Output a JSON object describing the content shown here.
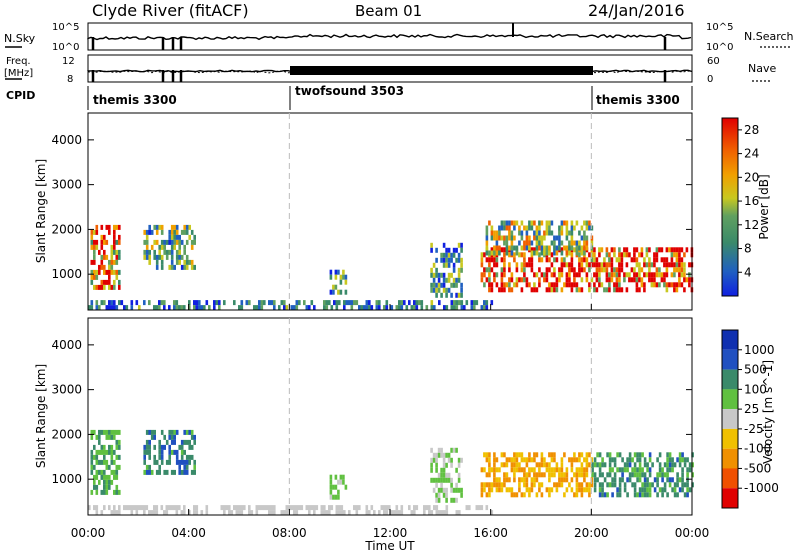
{
  "header": {
    "station": "Clyde River (fitACF)",
    "beam": "Beam 01",
    "date": "24/Jan/2016"
  },
  "summary_panels": {
    "nsky_label": "N.Sky",
    "nsky_ticks": [
      "10^5",
      "10^0"
    ],
    "nsearch_label": "N.Search",
    "nsearch_ticks": [
      "10^5",
      "10^0"
    ],
    "freq_label_1": "Freq.",
    "freq_label_2": "[MHz]",
    "freq_ticks": [
      "12",
      "8"
    ],
    "nave_label": "Nave",
    "nave_ticks": [
      "60",
      "0"
    ],
    "cpid_label": "CPID",
    "cpid_segments": [
      {
        "label": "themis 3300",
        "start_hour": 0,
        "end_hour": 8
      },
      {
        "label": "twofsound 3503",
        "start_hour": 8,
        "end_hour": 20
      },
      {
        "label": "themis 3300",
        "start_hour": 20,
        "end_hour": 24
      }
    ]
  },
  "x_axis": {
    "title": "Time UT",
    "ticks": [
      "00:00",
      "04:00",
      "08:00",
      "12:00",
      "16:00",
      "20:00",
      "00:00"
    ]
  },
  "chart_data": [
    {
      "type": "heatmap",
      "panel": "power",
      "ylabel": "Slant Range [km]",
      "yticks": [
        "1000",
        "2000",
        "3000",
        "4000"
      ],
      "ylim": [
        200,
        4600
      ],
      "xlim_hours": [
        0,
        24
      ],
      "colorbar_label": "Power [dB]",
      "colorbar_ticks": [
        "4",
        "8",
        "12",
        "16",
        "20",
        "24",
        "28"
      ],
      "colorbar_range": [
        0,
        30
      ],
      "colorscale": [
        "#1020e0",
        "#2060c0",
        "#3a8a6a",
        "#60a060",
        "#c8c820",
        "#f0a000",
        "#f06000",
        "#e00000"
      ],
      "echo_regions": [
        {
          "t_start": 0.1,
          "t_end": 1.2,
          "range_low": 700,
          "range_high": 2100,
          "level": 22
        },
        {
          "t_start": 2.2,
          "t_end": 4.2,
          "range_low": 1100,
          "range_high": 2100,
          "level": 12
        },
        {
          "t_start": 9.6,
          "t_end": 10.2,
          "range_low": 600,
          "range_high": 1100,
          "level": 10
        },
        {
          "t_start": 13.6,
          "t_end": 14.8,
          "range_low": 500,
          "range_high": 1700,
          "level": 10
        },
        {
          "t_start": 15.6,
          "t_end": 24.0,
          "range_low": 600,
          "range_high": 1600,
          "level": 27
        },
        {
          "t_start": 15.8,
          "t_end": 20.0,
          "range_low": 1500,
          "range_high": 2200,
          "level": 15
        },
        {
          "t_start": 0.0,
          "t_end": 16.0,
          "range_low": 220,
          "range_high": 420,
          "level": 8
        }
      ]
    },
    {
      "type": "heatmap",
      "panel": "velocity",
      "ylabel": "Slant Range [km]",
      "yticks": [
        "1000",
        "2000",
        "3000",
        "4000"
      ],
      "ylim": [
        200,
        4600
      ],
      "xlim_hours": [
        0,
        24
      ],
      "colorbar_label": "Velocity [m s^-1]",
      "colorbar_ticks": [
        "-1000",
        "-500",
        "-100",
        "-25",
        "25",
        "100",
        "500",
        "1000"
      ],
      "colorbar_range": [
        -1200,
        1200
      ],
      "colorscale": [
        "#e00000",
        "#f05000",
        "#f09000",
        "#f0c000",
        "#c8c8c8",
        "#60c040",
        "#3a8a6a",
        "#2050c0",
        "#1030b0"
      ],
      "echo_regions": [
        {
          "t_start": 0.1,
          "t_end": 1.2,
          "range_low": 700,
          "range_high": 2100,
          "level": 400
        },
        {
          "t_start": 2.2,
          "t_end": 4.2,
          "range_low": 1100,
          "range_high": 2100,
          "level": 600
        },
        {
          "t_start": 9.6,
          "t_end": 10.2,
          "range_low": 600,
          "range_high": 1100,
          "level": 200
        },
        {
          "t_start": 13.6,
          "t_end": 14.8,
          "range_low": 500,
          "range_high": 1700,
          "level": 150
        },
        {
          "t_start": 15.6,
          "t_end": 20.0,
          "range_low": 600,
          "range_high": 1600,
          "level": -400
        },
        {
          "t_start": 20.0,
          "t_end": 24.0,
          "range_low": 700,
          "range_high": 1600,
          "level": 500
        },
        {
          "t_start": 0.0,
          "t_end": 16.0,
          "range_low": 220,
          "range_high": 420,
          "level": -20
        }
      ]
    }
  ]
}
